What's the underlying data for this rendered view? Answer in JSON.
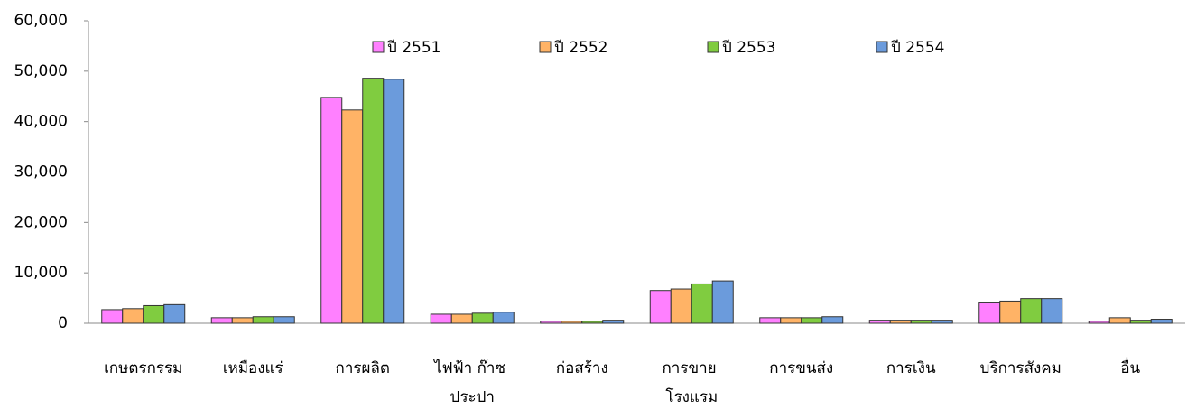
{
  "chart_data": {
    "type": "bar",
    "categories": [
      "เกษตรกรรม",
      "เหมืองแร่",
      "การผลิต",
      "ไฟฟ้า ก๊าซ ประปา",
      "ก่อสร้าง",
      "การขาย โรงแรม",
      "การขนส่ง",
      "การเงิน",
      "บริการสังคม",
      "อื่น"
    ],
    "series": [
      {
        "name": "ปี 2551",
        "color": "#ff80ff",
        "values": [
          2700,
          1100,
          44800,
          1800,
          400,
          6500,
          1100,
          600,
          4200,
          400
        ]
      },
      {
        "name": "ปี 2552",
        "color": "#ffb366",
        "values": [
          2900,
          1100,
          42300,
          1800,
          400,
          6800,
          1100,
          600,
          4400,
          1100
        ]
      },
      {
        "name": "ปี 2553",
        "color": "#80cc40",
        "values": [
          3500,
          1300,
          48600,
          2000,
          400,
          7800,
          1100,
          600,
          4900,
          600
        ]
      },
      {
        "name": "ปี 2554",
        "color": "#6b9bdc",
        "values": [
          3700,
          1300,
          48400,
          2200,
          600,
          8400,
          1300,
          600,
          4900,
          800
        ]
      }
    ],
    "ylim": [
      0,
      60000
    ],
    "yticks": [
      0,
      {
        "value": 10000,
        "label": "10,000"
      },
      {
        "value": 20000,
        "label": "20,000"
      },
      {
        "value": 30000,
        "label": "30,000"
      },
      {
        "value": 40000,
        "label": "40,000"
      },
      {
        "value": 50000,
        "label": "50,000"
      },
      {
        "value": 60000,
        "label": "60,000"
      }
    ],
    "legend": "top",
    "grid": false
  }
}
